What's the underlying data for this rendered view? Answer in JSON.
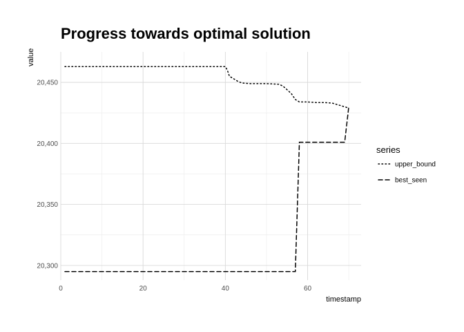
{
  "chart_data": {
    "type": "line",
    "title": "Progress towards optimal solution",
    "xlabel": "timestamp",
    "ylabel": "value",
    "xlim": [
      0,
      73
    ],
    "ylim": [
      20288,
      20475
    ],
    "x_ticks": [
      0,
      20,
      40,
      60
    ],
    "x_tick_labels": [
      "0",
      "20",
      "40",
      "60"
    ],
    "y_ticks": [
      20300,
      20350,
      20400,
      20450
    ],
    "y_tick_labels": [
      "20,300",
      "20,350",
      "20,400",
      "20,450"
    ],
    "grid": true,
    "legend_title": "series",
    "legend_position": "right",
    "series": [
      {
        "name": "upper_bound",
        "line_style": "dotted",
        "color": "#000000",
        "x": [
          1,
          40,
          40.5,
          41,
          42,
          43,
          44,
          46,
          50,
          53,
          54,
          55,
          56,
          57,
          58,
          60,
          62,
          64,
          66,
          68,
          70
        ],
        "y": [
          20463,
          20463,
          20460,
          20455,
          20453,
          20451,
          20449.5,
          20449,
          20449,
          20448.5,
          20447,
          20444,
          20441,
          20436,
          20434,
          20434,
          20433.5,
          20433.5,
          20433,
          20431,
          20429
        ]
      },
      {
        "name": "best_seen",
        "line_style": "dashed",
        "color": "#000000",
        "x": [
          1,
          57,
          58,
          69,
          70
        ],
        "y": [
          20295,
          20295,
          20401,
          20401,
          20430
        ]
      }
    ]
  }
}
